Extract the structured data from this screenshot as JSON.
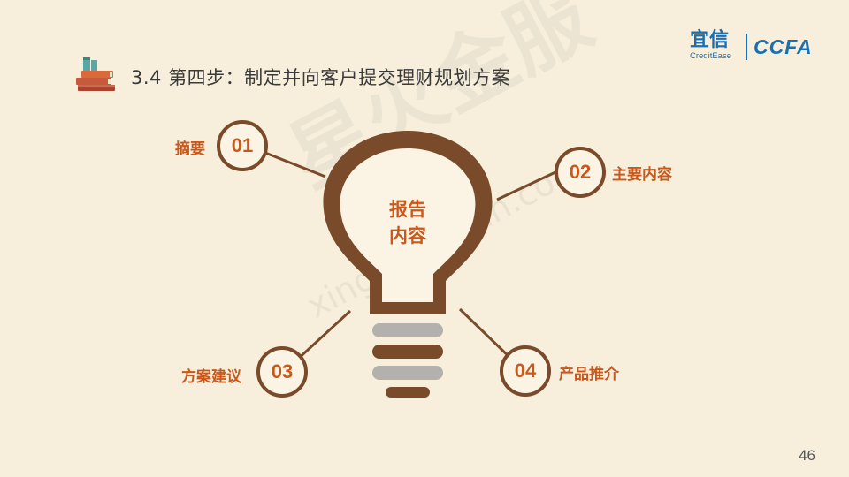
{
  "header": {
    "title": "3.4 第四步：制定并向客户提交理财规划方案",
    "icon": "stacked-books-icon"
  },
  "logo": {
    "brand": "宜信",
    "brand_sub": "CreditEase",
    "partner": "CCFA"
  },
  "watermark": {
    "text": "星火金服",
    "url": "xinghuo.yixin.com"
  },
  "bulb": {
    "center_line1": "报告",
    "center_line2": "内容"
  },
  "items": [
    {
      "num": "01",
      "label": "摘要"
    },
    {
      "num": "02",
      "label": "主要内容"
    },
    {
      "num": "03",
      "label": "方案建议"
    },
    {
      "num": "04",
      "label": "产品推介"
    }
  ],
  "page_number": "46",
  "colors": {
    "background": "#f7efdc",
    "bulb_brown": "#7a4b2a",
    "accent_orange": "#c8581b",
    "bulb_gray": "#b3b1ab",
    "logo_blue": "#1a6fb3"
  }
}
